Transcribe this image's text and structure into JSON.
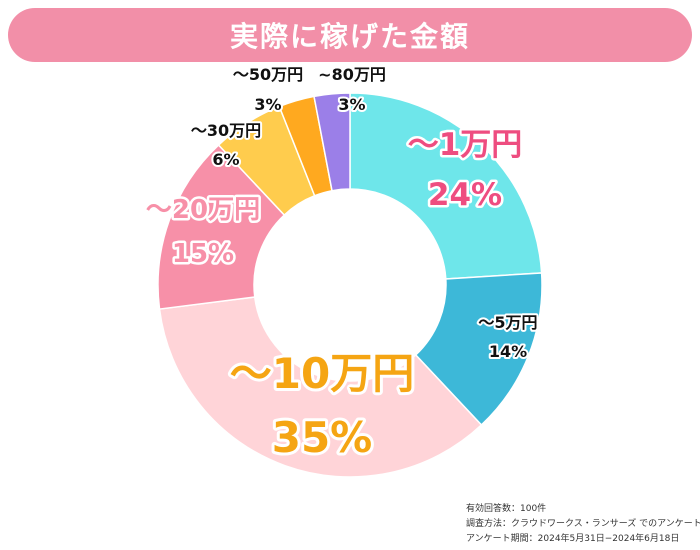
{
  "title": "実際に稼げた金額",
  "chart_data": {
    "type": "pie",
    "donut": true,
    "categories": [
      "〜1万円",
      "〜5万円",
      "〜10万円",
      "〜20万円",
      "〜30万円",
      "〜50万円",
      "~80万円"
    ],
    "values": [
      24,
      14,
      35,
      15,
      6,
      3,
      3
    ],
    "value_labels": [
      "24%",
      "14%",
      "35%",
      "15%",
      "6%",
      "3%",
      "3%"
    ],
    "colors": [
      "#6ee6ea",
      "#3db8d8",
      "#ffd4d8",
      "#f790a8",
      "#ffcc4d",
      "#ffa91f",
      "#9b7fe8"
    ]
  },
  "footnote": {
    "line1": "有効回答数：100件",
    "line2": "調査方法：クラウドワークス・ランサーズ でのアンケート",
    "line3": "アンケート期間：2024年5月31日−2024年6月18日"
  }
}
